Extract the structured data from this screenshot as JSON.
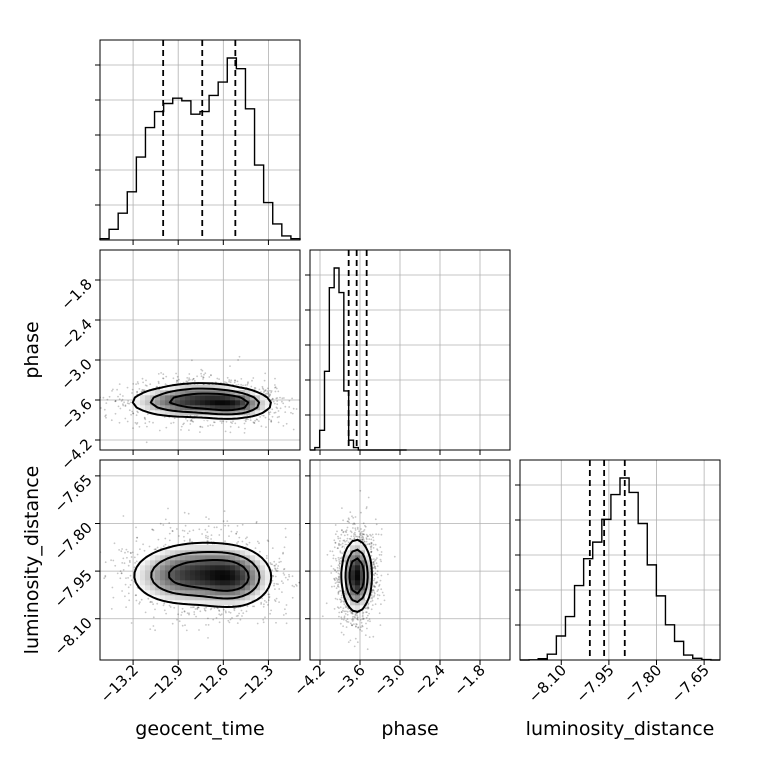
{
  "chart_data": {
    "type": "corner",
    "parameters": [
      "geocent_time",
      "phase",
      "luminosity_distance"
    ],
    "ranges": {
      "geocent_time": [
        -13.42,
        -12.09
      ],
      "phase": [
        -4.35,
        -1.35
      ],
      "luminosity_distance": [
        -8.23,
        -7.6
      ]
    },
    "ticks": {
      "geocent_time": [
        "−13.2",
        "−12.9",
        "−12.6",
        "−12.3"
      ],
      "phase": [
        "−4.2",
        "−3.6",
        "−3.0",
        "−2.4",
        "−1.8"
      ],
      "luminosity_distance": [
        "−8.10",
        "−7.95",
        "−7.80",
        "−7.65"
      ]
    },
    "tick_values": {
      "geocent_time": [
        -13.2,
        -12.9,
        -12.6,
        -12.3
      ],
      "phase": [
        -4.2,
        -3.6,
        -3.0,
        -2.4,
        -1.8
      ],
      "luminosity_distance": [
        -8.1,
        -7.95,
        -7.8,
        -7.65
      ]
    },
    "quantiles": {
      "geocent_time": [
        -13.0,
        -12.74,
        -12.52
      ],
      "phase": [
        -3.77,
        -3.65,
        -3.5
      ],
      "luminosity_distance": [
        -8.01,
        -7.965,
        -7.9
      ]
    },
    "histograms": {
      "geocent_time": {
        "counts": [
          0.5,
          4,
          10,
          18,
          31,
          42,
          48,
          51,
          53,
          52,
          47,
          48,
          54,
          59,
          68,
          64,
          49,
          28,
          14,
          6,
          1.5,
          0.5
        ]
      },
      "phase": {
        "counts": [
          0,
          0.1,
          0.8,
          3.2,
          6.6,
          7.4,
          6.4,
          2.4,
          0.4,
          0.1,
          0,
          0,
          0,
          0,
          0,
          0,
          0,
          0,
          0,
          0
        ]
      },
      "luminosity_distance": {
        "counts": [
          0,
          0.05,
          0.3,
          1.4,
          5.8,
          10.5,
          18,
          24.5,
          28.5,
          34,
          40,
          44,
          40.5,
          33,
          23,
          15.5,
          8.5,
          4.5,
          1.2,
          0.4,
          0.1,
          0
        ]
      }
    },
    "joint": [
      {
        "x": "geocent_time",
        "y": "phase",
        "blobs": [
          {
            "cx": -12.92,
            "cy": -3.63,
            "sx": 0.2,
            "sy": 0.14,
            "w": 1.0
          },
          {
            "cx": -12.52,
            "cy": -3.66,
            "sx": 0.15,
            "sy": 0.13,
            "w": 1.25
          },
          {
            "cx": -12.73,
            "cy": -3.55,
            "sx": 0.17,
            "sy": 0.16,
            "w": 0.6
          }
        ]
      },
      {
        "x": "geocent_time",
        "y": "luminosity_distance",
        "blobs": [
          {
            "cx": -12.92,
            "cy": -7.965,
            "sx": 0.19,
            "sy": 0.055,
            "w": 1.0
          },
          {
            "cx": -12.52,
            "cy": -7.97,
            "sx": 0.15,
            "sy": 0.055,
            "w": 1.25
          },
          {
            "cx": -12.73,
            "cy": -7.945,
            "sx": 0.17,
            "sy": 0.06,
            "w": 0.55
          }
        ]
      },
      {
        "x": "phase",
        "y": "luminosity_distance",
        "blobs": [
          {
            "cx": -3.65,
            "cy": -7.965,
            "sx": 0.13,
            "sy": 0.065,
            "w": 1.0
          }
        ]
      }
    ],
    "grid": true
  }
}
